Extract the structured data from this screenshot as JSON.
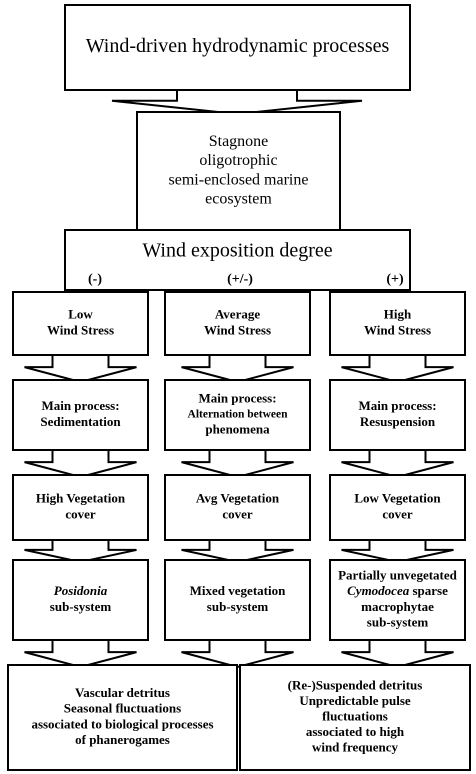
{
  "nodes": [
    {
      "lines": [
        "Wind-driven hydrodynamic processes"
      ]
    },
    {
      "lines": [
        "Stagnone",
        "oligotrophic",
        "semi-enclosed marine",
        "ecosystem"
      ]
    },
    {
      "lines": [
        "Wind exposition degree"
      ]
    },
    {
      "lines": [
        "Low",
        "Wind Stress"
      ]
    },
    {
      "lines": [
        "Average",
        "Wind Stress"
      ]
    },
    {
      "lines": [
        "High",
        "Wind Stress"
      ]
    },
    {
      "lines": [
        "Main process:",
        "Sedimentation"
      ]
    },
    {
      "lines": [
        "Main process:",
        "Alternation between",
        "phenomena"
      ]
    },
    {
      "lines": [
        "Main process:",
        "Resuspension"
      ]
    },
    {
      "lines": [
        "High Vegetation",
        "cover"
      ]
    },
    {
      "lines": [
        "Avg Vegetation",
        "cover"
      ]
    },
    {
      "lines": [
        "Low Vegetation",
        "cover"
      ]
    },
    {
      "lines": [
        [
          {
            "text": "Posidonia",
            "italic": true
          }
        ],
        "sub-system"
      ]
    },
    {
      "lines": [
        "Mixed vegetation",
        "sub-system"
      ]
    },
    {
      "lines": [
        "Partially unvegetated",
        [
          {
            "text": "Cymodocea",
            "italic": true
          },
          {
            "text": " sparse"
          }
        ],
        "macrophytae",
        "sub-system"
      ]
    },
    {
      "lines": [
        "Vascular detritus",
        "Seasonal fluctuations",
        "associated to biological processes",
        "of  phanerogames"
      ]
    },
    {
      "lines": [
        "(Re-)Suspended detritus",
        "Unpredictable pulse",
        "fluctuations",
        "associated to high",
        "wind frequency"
      ]
    }
  ],
  "exposition_labels": [
    "(-)",
    "(+/-)",
    "(+)"
  ]
}
